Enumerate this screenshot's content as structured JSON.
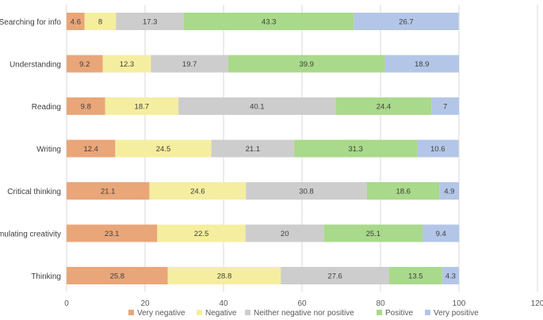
{
  "chart_data": {
    "type": "bar",
    "orientation": "horizontal",
    "stacked": true,
    "categories": [
      "Searching for info",
      "Understanding",
      "Reading",
      "Writing",
      "Critical thinking",
      "Stimulating creativity",
      "Thinking"
    ],
    "series": [
      {
        "name": "Very negative",
        "color": "#e9a679",
        "values": [
          4.6,
          9.2,
          9.8,
          12.4,
          21.1,
          23.1,
          25.8
        ]
      },
      {
        "name": "Negative",
        "color": "#f5eea0",
        "values": [
          8,
          12.3,
          18.7,
          24.5,
          24.6,
          22.5,
          28.8
        ]
      },
      {
        "name": "Neither negative nor positive",
        "color": "#cdcdcd",
        "values": [
          17.3,
          19.7,
          40.1,
          21.1,
          30.8,
          20,
          27.6
        ]
      },
      {
        "name": "Positive",
        "color": "#a9d98a",
        "values": [
          43.3,
          39.9,
          24.4,
          31.3,
          18.6,
          25.1,
          13.5
        ]
      },
      {
        "name": "Very positive",
        "color": "#b4c6e7",
        "values": [
          26.7,
          18.9,
          7,
          10.6,
          4.9,
          9.4,
          4.3
        ]
      }
    ],
    "xlim": [
      0,
      120
    ],
    "xticks": [
      "0",
      "20",
      "40",
      "60",
      "80",
      "100",
      "120"
    ],
    "legend_position": "bottom",
    "grid": true,
    "title": "",
    "xlabel": "",
    "ylabel": ""
  }
}
